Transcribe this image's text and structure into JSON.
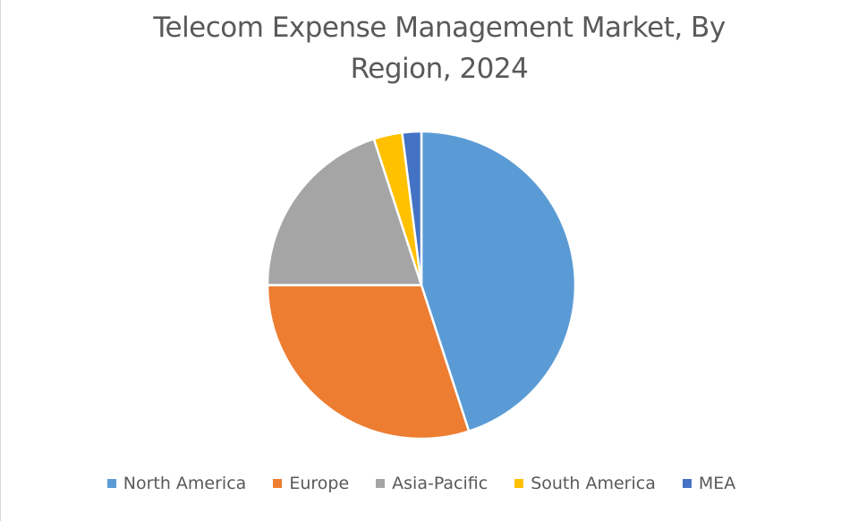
{
  "chart_data": {
    "type": "pie",
    "title": "Telecom Expense Management Market, By Region, 2024",
    "categories": [
      "North America",
      "Europe",
      "Asia-Pacific",
      "South America",
      "MEA"
    ],
    "values": [
      45,
      30,
      20,
      3,
      2
    ],
    "colors": [
      "#5B9BD5",
      "#ED7D31",
      "#A5A5A5",
      "#FFC000",
      "#4472C4"
    ],
    "legend_position": "bottom"
  }
}
